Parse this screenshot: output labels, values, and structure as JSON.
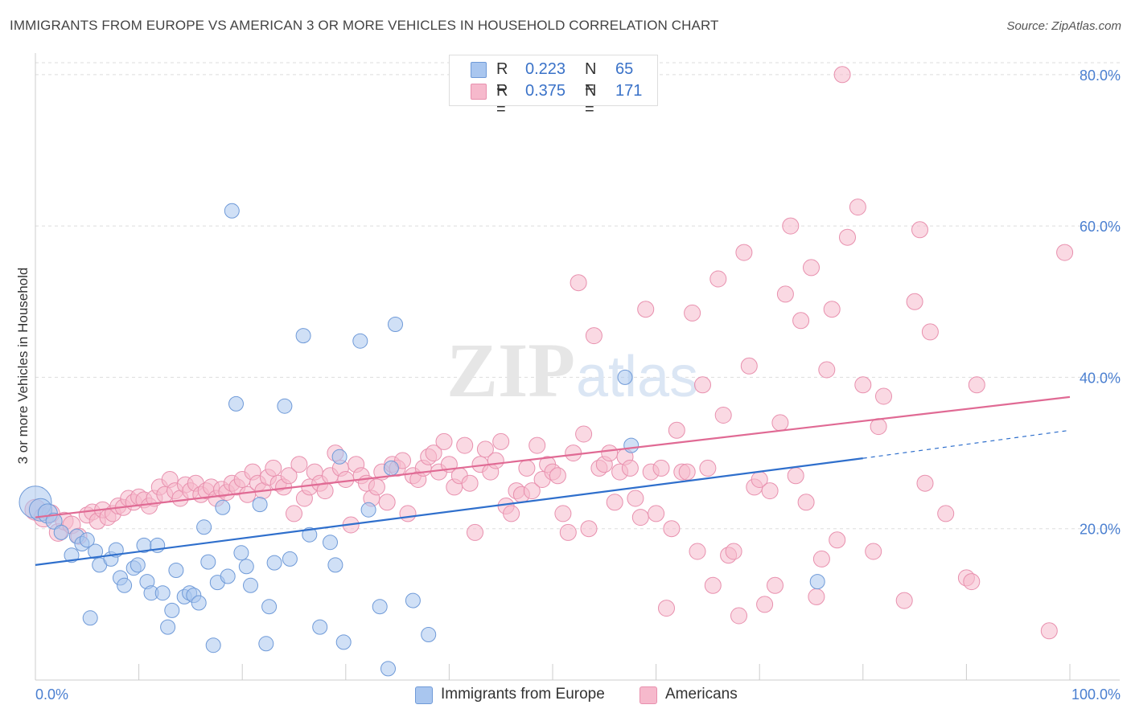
{
  "header": {
    "title": "IMMIGRANTS FROM EUROPE VS AMERICAN 3 OR MORE VEHICLES IN HOUSEHOLD CORRELATION CHART",
    "source": "Source: ZipAtlas.com"
  },
  "legend_top": {
    "rows": [
      {
        "r_label": "R =",
        "r_value": "0.223",
        "n_label": "N =",
        "n_value": "65"
      },
      {
        "r_label": "R =",
        "r_value": "0.375",
        "n_label": "N =",
        "n_value": "171"
      }
    ]
  },
  "legend_bottom": {
    "items": [
      {
        "label": "Immigrants from Europe"
      },
      {
        "label": "Americans"
      }
    ]
  },
  "colors": {
    "blue_fill": "#a9c6ef",
    "blue_stroke": "#6f9ad8",
    "blue_line": "#2f6fcc",
    "pink_fill": "#f6b9cc",
    "pink_stroke": "#e890ae",
    "pink_line": "#e06a94",
    "tick_label": "#4a7fd0",
    "grid": "#dddddd"
  },
  "chart_data": {
    "type": "scatter",
    "title": "IMMIGRANTS FROM EUROPE VS AMERICAN 3 OR MORE VEHICLES IN HOUSEHOLD CORRELATION CHART",
    "xlabel": "",
    "ylabel": "3 or more Vehicles in Household",
    "xlim": [
      0,
      100
    ],
    "ylim": [
      0,
      82
    ],
    "x_tick_labels": [
      "0.0%",
      "100.0%"
    ],
    "y_ticks": [
      20,
      40,
      60,
      80
    ],
    "y_tick_labels": [
      "20.0%",
      "40.0%",
      "60.0%",
      "80.0%"
    ],
    "grid": true,
    "watermark": "ZIPatlas",
    "legend_position": "top-center",
    "series": [
      {
        "name": "Immigrants from Europe",
        "color": "blue",
        "R": 0.223,
        "N": 65,
        "trend": {
          "x0": 0,
          "y0": 15.2,
          "x1": 80,
          "y1": 29.3,
          "dashed_to_x": 100,
          "dashed_to_y": 33.0
        },
        "points": [
          [
            0,
            23.5,
            20
          ],
          [
            0.5,
            22.5,
            14
          ],
          [
            1.2,
            22,
            12
          ],
          [
            1.8,
            21,
            10
          ],
          [
            2.5,
            19.5,
            9
          ],
          [
            3.5,
            16.5,
            9
          ],
          [
            4,
            19,
            9
          ],
          [
            4.5,
            18,
            9
          ],
          [
            5,
            18.5,
            9
          ],
          [
            5.3,
            8.2,
            9
          ],
          [
            5.8,
            17,
            9
          ],
          [
            6.2,
            15.2,
            9
          ],
          [
            7.3,
            16,
            9
          ],
          [
            7.8,
            17.2,
            9
          ],
          [
            8.2,
            13.5,
            9
          ],
          [
            8.6,
            12.5,
            9
          ],
          [
            9.5,
            14.8,
            9
          ],
          [
            9.9,
            15.2,
            9
          ],
          [
            10.5,
            17.8,
            9
          ],
          [
            10.8,
            13.0,
            9
          ],
          [
            11.2,
            11.5,
            9
          ],
          [
            11.8,
            17.8,
            9
          ],
          [
            12.3,
            11.5,
            9
          ],
          [
            12.8,
            7.0,
            9
          ],
          [
            13.2,
            9.2,
            9
          ],
          [
            13.6,
            14.5,
            9
          ],
          [
            14.4,
            11.0,
            9
          ],
          [
            14.9,
            11.5,
            9
          ],
          [
            15.3,
            11.2,
            9
          ],
          [
            15.8,
            10.2,
            9
          ],
          [
            16.3,
            20.2,
            9
          ],
          [
            16.7,
            15.6,
            9
          ],
          [
            17.2,
            4.6,
            9
          ],
          [
            17.6,
            12.9,
            9
          ],
          [
            18.1,
            22.8,
            9
          ],
          [
            18.6,
            13.7,
            9
          ],
          [
            19,
            62,
            9
          ],
          [
            19.4,
            36.5,
            9
          ],
          [
            19.9,
            16.8,
            9
          ],
          [
            20.4,
            15.0,
            9
          ],
          [
            20.8,
            12.5,
            9
          ],
          [
            21.7,
            23.2,
            9
          ],
          [
            22.3,
            4.8,
            9
          ],
          [
            22.6,
            9.7,
            9
          ],
          [
            23.1,
            15.5,
            9
          ],
          [
            24.1,
            36.2,
            9
          ],
          [
            24.6,
            16.0,
            9
          ],
          [
            25.9,
            45.5,
            9
          ],
          [
            26.5,
            19.2,
            9
          ],
          [
            27.5,
            7.0,
            9
          ],
          [
            28.5,
            18.2,
            9
          ],
          [
            29.0,
            15.2,
            9
          ],
          [
            29.4,
            29.5,
            9
          ],
          [
            29.8,
            5.0,
            9
          ],
          [
            31.4,
            44.8,
            9
          ],
          [
            32.2,
            22.5,
            9
          ],
          [
            33.3,
            9.7,
            9
          ],
          [
            34.1,
            1.5,
            9
          ],
          [
            34.4,
            28.0,
            9
          ],
          [
            34.8,
            47.0,
            9
          ],
          [
            57.0,
            40.0,
            9
          ],
          [
            57.6,
            31.0,
            9
          ],
          [
            75.6,
            13.0,
            9
          ],
          [
            36.5,
            10.5,
            9
          ],
          [
            38.0,
            6.0,
            9
          ]
        ]
      },
      {
        "name": "Americans",
        "color": "pink",
        "R": 0.375,
        "N": 171,
        "trend": {
          "x0": 0,
          "y0": 21.5,
          "x1": 100,
          "y1": 37.4
        },
        "points": [
          [
            0,
            22.5,
            13
          ],
          [
            0.8,
            21.5,
            12
          ],
          [
            1.5,
            22.0,
            11
          ],
          [
            2.2,
            19.5,
            11
          ],
          [
            2.8,
            21.0,
            11
          ],
          [
            3.5,
            20.5,
            11
          ],
          [
            4.2,
            19.0,
            10
          ],
          [
            5.0,
            21.8,
            10
          ],
          [
            5.5,
            22.2,
            10
          ],
          [
            6.0,
            21.0,
            10
          ],
          [
            6.5,
            22.5,
            10
          ],
          [
            7.0,
            21.5,
            10
          ],
          [
            7.5,
            22.0,
            10
          ],
          [
            8.0,
            23.0,
            10
          ],
          [
            8.5,
            22.8,
            10
          ],
          [
            9.0,
            24.0,
            10
          ],
          [
            9.5,
            23.5,
            10
          ],
          [
            10.0,
            24.2,
            10
          ],
          [
            10.5,
            23.8,
            10
          ],
          [
            11.0,
            23.0,
            10
          ],
          [
            11.5,
            24.0,
            10
          ],
          [
            12.0,
            25.5,
            10
          ],
          [
            12.5,
            24.5,
            10
          ],
          [
            13.0,
            26.5,
            10
          ],
          [
            13.5,
            25.0,
            10
          ],
          [
            14.0,
            24.0,
            10
          ],
          [
            14.5,
            25.8,
            10
          ],
          [
            15.0,
            25.0,
            10
          ],
          [
            15.5,
            26.0,
            10
          ],
          [
            16.0,
            24.5,
            10
          ],
          [
            16.5,
            25.0,
            10
          ],
          [
            17.0,
            25.5,
            10
          ],
          [
            17.5,
            24.0,
            10
          ],
          [
            18.0,
            25.2,
            10
          ],
          [
            18.5,
            24.8,
            10
          ],
          [
            19.0,
            26.0,
            10
          ],
          [
            19.5,
            25.5,
            10
          ],
          [
            20.0,
            26.5,
            10
          ],
          [
            20.5,
            24.5,
            10
          ],
          [
            21.0,
            27.5,
            10
          ],
          [
            21.5,
            26.0,
            10
          ],
          [
            22.0,
            25.0,
            10
          ],
          [
            22.5,
            26.8,
            10
          ],
          [
            23.0,
            28.0,
            10
          ],
          [
            23.5,
            26.0,
            10
          ],
          [
            24.0,
            25.5,
            10
          ],
          [
            24.5,
            27.0,
            10
          ],
          [
            25.0,
            22.0,
            10
          ],
          [
            25.5,
            28.5,
            10
          ],
          [
            26.0,
            24.0,
            10
          ],
          [
            26.5,
            25.5,
            10
          ],
          [
            27.0,
            27.5,
            10
          ],
          [
            27.5,
            26.0,
            10
          ],
          [
            28.0,
            25.0,
            10
          ],
          [
            28.5,
            27.0,
            10
          ],
          [
            29.0,
            30.0,
            10
          ],
          [
            29.5,
            28.0,
            10
          ],
          [
            30.0,
            26.5,
            10
          ],
          [
            30.5,
            20.5,
            10
          ],
          [
            31.0,
            28.5,
            10
          ],
          [
            31.5,
            27.0,
            10
          ],
          [
            32.0,
            26.0,
            10
          ],
          [
            32.5,
            24.0,
            10
          ],
          [
            33.0,
            25.5,
            10
          ],
          [
            33.5,
            27.5,
            10
          ],
          [
            34.0,
            23.5,
            10
          ],
          [
            34.5,
            28.5,
            10
          ],
          [
            35.0,
            28.0,
            10
          ],
          [
            35.5,
            29.0,
            10
          ],
          [
            36.0,
            22.0,
            10
          ],
          [
            36.5,
            27.0,
            10
          ],
          [
            37.0,
            26.5,
            10
          ],
          [
            37.5,
            28.0,
            10
          ],
          [
            38.0,
            29.5,
            10
          ],
          [
            38.5,
            30.0,
            10
          ],
          [
            39.0,
            27.5,
            10
          ],
          [
            39.5,
            31.5,
            10
          ],
          [
            40.0,
            28.5,
            10
          ],
          [
            40.5,
            25.5,
            10
          ],
          [
            41.0,
            27.0,
            10
          ],
          [
            41.5,
            31.0,
            10
          ],
          [
            42.0,
            26.0,
            10
          ],
          [
            42.5,
            19.5,
            10
          ],
          [
            43.0,
            28.5,
            10
          ],
          [
            43.5,
            30.5,
            10
          ],
          [
            44.0,
            27.5,
            10
          ],
          [
            44.5,
            29.0,
            10
          ],
          [
            45.0,
            31.5,
            10
          ],
          [
            45.5,
            23.0,
            10
          ],
          [
            46.0,
            22.0,
            10
          ],
          [
            46.5,
            25.0,
            10
          ],
          [
            47.0,
            24.5,
            10
          ],
          [
            47.5,
            28.0,
            10
          ],
          [
            48.0,
            25.0,
            10
          ],
          [
            48.5,
            31.0,
            10
          ],
          [
            49.0,
            26.5,
            10
          ],
          [
            49.5,
            28.5,
            10
          ],
          [
            50.0,
            27.5,
            10
          ],
          [
            50.5,
            27.0,
            10
          ],
          [
            51.0,
            22.0,
            10
          ],
          [
            51.5,
            19.5,
            10
          ],
          [
            52.0,
            30.0,
            10
          ],
          [
            52.5,
            52.5,
            10
          ],
          [
            53.0,
            32.5,
            10
          ],
          [
            53.5,
            20.0,
            10
          ],
          [
            54.0,
            45.5,
            10
          ],
          [
            54.5,
            28.0,
            10
          ],
          [
            55.0,
            28.5,
            10
          ],
          [
            55.5,
            30.0,
            10
          ],
          [
            56.0,
            23.5,
            10
          ],
          [
            56.5,
            27.5,
            10
          ],
          [
            57.0,
            29.5,
            10
          ],
          [
            57.5,
            28.0,
            10
          ],
          [
            58.0,
            24.0,
            10
          ],
          [
            58.5,
            21.5,
            10
          ],
          [
            59.0,
            49.0,
            10
          ],
          [
            59.5,
            27.5,
            10
          ],
          [
            60.0,
            22.0,
            10
          ],
          [
            60.5,
            28.0,
            10
          ],
          [
            61.0,
            9.5,
            10
          ],
          [
            61.5,
            20.0,
            10
          ],
          [
            62.0,
            33.0,
            10
          ],
          [
            62.5,
            27.5,
            10
          ],
          [
            63.0,
            27.5,
            10
          ],
          [
            63.5,
            48.5,
            10
          ],
          [
            64.0,
            17.0,
            10
          ],
          [
            64.5,
            39.0,
            10
          ],
          [
            65.0,
            28.0,
            10
          ],
          [
            65.5,
            12.5,
            10
          ],
          [
            66.0,
            53.0,
            10
          ],
          [
            66.5,
            35.0,
            10
          ],
          [
            67.0,
            16.5,
            10
          ],
          [
            67.5,
            17.0,
            10
          ],
          [
            68.0,
            8.5,
            10
          ],
          [
            68.5,
            56.5,
            10
          ],
          [
            69.0,
            41.5,
            10
          ],
          [
            69.5,
            25.5,
            10
          ],
          [
            70.0,
            26.5,
            10
          ],
          [
            70.5,
            10.0,
            10
          ],
          [
            71.0,
            25.0,
            10
          ],
          [
            71.5,
            12.5,
            10
          ],
          [
            72.0,
            34.0,
            10
          ],
          [
            72.5,
            51.0,
            10
          ],
          [
            73.0,
            60.0,
            10
          ],
          [
            73.5,
            27.0,
            10
          ],
          [
            74.0,
            47.5,
            10
          ],
          [
            74.5,
            23.5,
            10
          ],
          [
            75.0,
            54.5,
            10
          ],
          [
            75.5,
            11.0,
            10
          ],
          [
            76.0,
            16.0,
            10
          ],
          [
            76.5,
            41.0,
            10
          ],
          [
            77.0,
            49.0,
            10
          ],
          [
            77.5,
            18.5,
            10
          ],
          [
            78.0,
            80.0,
            10
          ],
          [
            78.5,
            58.5,
            10
          ],
          [
            79.5,
            62.5,
            10
          ],
          [
            80.0,
            39.0,
            10
          ],
          [
            81.0,
            17.0,
            10
          ],
          [
            81.5,
            33.5,
            10
          ],
          [
            82.0,
            37.5,
            10
          ],
          [
            85.0,
            50.0,
            10
          ],
          [
            85.5,
            59.5,
            10
          ],
          [
            86.0,
            26.0,
            10
          ],
          [
            86.5,
            46.0,
            10
          ],
          [
            90.0,
            13.5,
            10
          ],
          [
            90.5,
            13.0,
            10
          ],
          [
            91.0,
            39.0,
            10
          ],
          [
            98.0,
            6.5,
            10
          ],
          [
            99.5,
            56.5,
            10
          ],
          [
            84.0,
            10.5,
            10
          ],
          [
            88.0,
            22.0,
            10
          ]
        ]
      }
    ]
  }
}
